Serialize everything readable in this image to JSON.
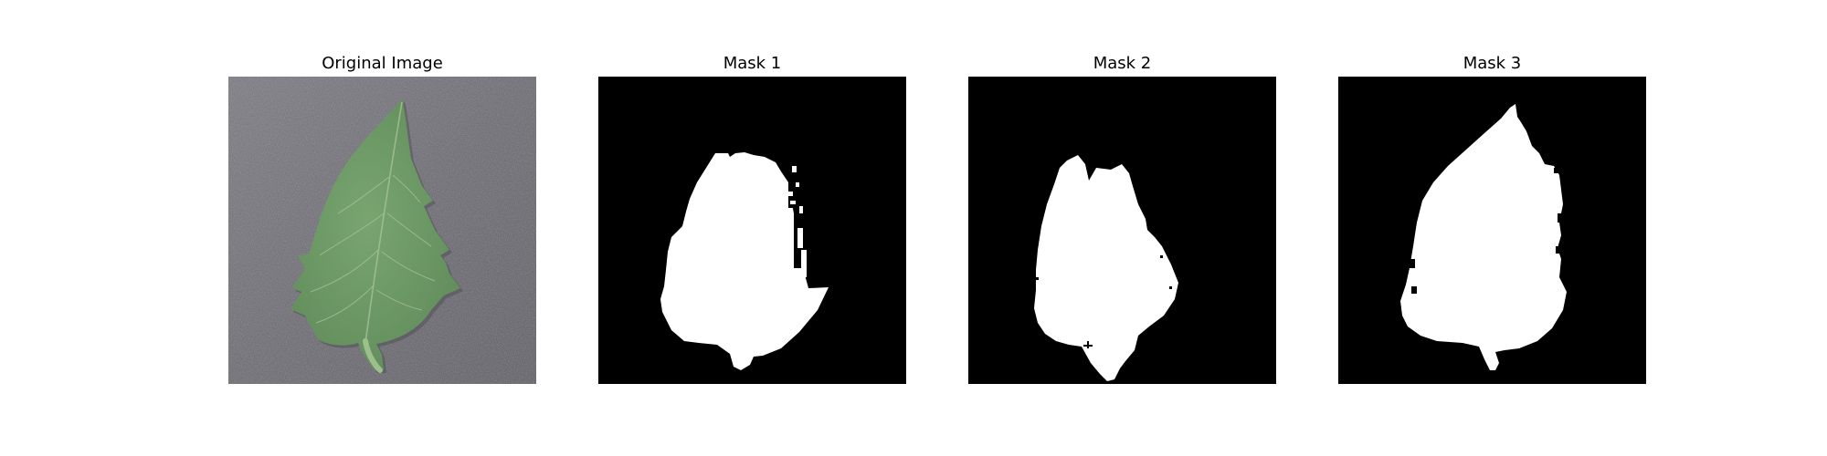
{
  "figure": {
    "panels": [
      {
        "title": "Original Image",
        "kind": "photo"
      },
      {
        "title": "Mask 1",
        "kind": "mask"
      },
      {
        "title": "Mask 2",
        "kind": "mask"
      },
      {
        "title": "Mask 3",
        "kind": "mask"
      }
    ],
    "colors": {
      "background": "#ffffff",
      "photo_surface": "#6d6b73",
      "leaf_fill": "#6e9a66",
      "leaf_vein": "#a9c49c",
      "mask_background": "#000000",
      "mask_foreground": "#ffffff"
    }
  }
}
